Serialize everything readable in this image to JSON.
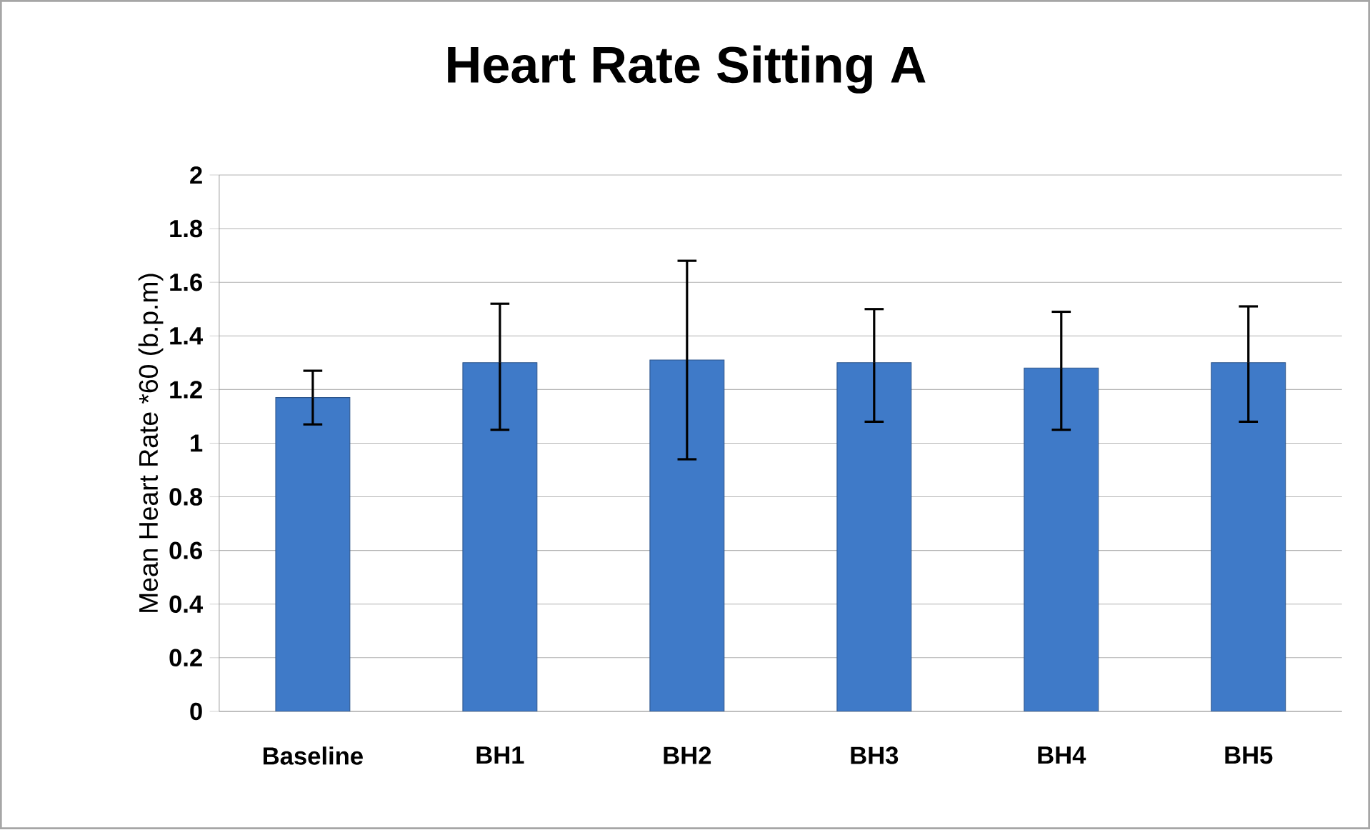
{
  "chart_data": {
    "type": "bar",
    "title": "Heart Rate Sitting A",
    "ylabel": "Mean Heart Rate *60 (b.p.m)",
    "categories": [
      "Baseline",
      "BH1",
      "BH2",
      "BH3",
      "BH4",
      "BH5"
    ],
    "values": [
      1.17,
      1.3,
      1.31,
      1.3,
      1.28,
      1.3
    ],
    "errors": [
      [
        1.07,
        1.27
      ],
      [
        1.05,
        1.52
      ],
      [
        0.94,
        1.68
      ],
      [
        1.08,
        1.5
      ],
      [
        1.05,
        1.49
      ],
      [
        1.08,
        1.51
      ]
    ],
    "color": "#3f7ac8",
    "ylim": [
      0,
      2
    ],
    "yticks": [
      0,
      0.2,
      0.4,
      0.6,
      0.8,
      1,
      1.2,
      1.4,
      1.6,
      1.8,
      2
    ],
    "grid": "y"
  }
}
